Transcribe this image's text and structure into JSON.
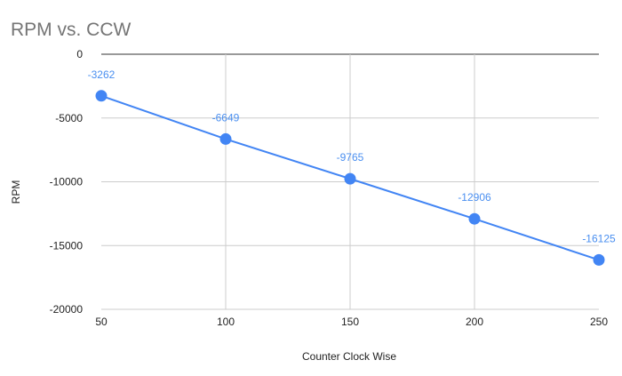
{
  "chart_data": {
    "type": "line",
    "title": "RPM vs. CCW",
    "xlabel": "Counter Clock Wise",
    "ylabel": "RPM",
    "x": [
      50,
      100,
      150,
      200,
      250
    ],
    "series": [
      {
        "values": [
          -3262,
          -6649,
          -9765,
          -12906,
          -16125
        ],
        "color": "#4285f4"
      }
    ],
    "data_labels": [
      "-3262",
      "-6649",
      "-9765",
      "-12906",
      "-16125"
    ],
    "x_ticks": [
      "50",
      "100",
      "150",
      "200",
      "250"
    ],
    "y_ticks": [
      "0",
      "-5000",
      "-10000",
      "-15000",
      "-20000"
    ],
    "x_tick_values": [
      50,
      100,
      150,
      200,
      250
    ],
    "y_tick_values": [
      0,
      -5000,
      -10000,
      -15000,
      -20000
    ],
    "xlim": [
      50,
      250
    ],
    "ylim": [
      -20000,
      0
    ],
    "grid": true,
    "legend": "none"
  }
}
